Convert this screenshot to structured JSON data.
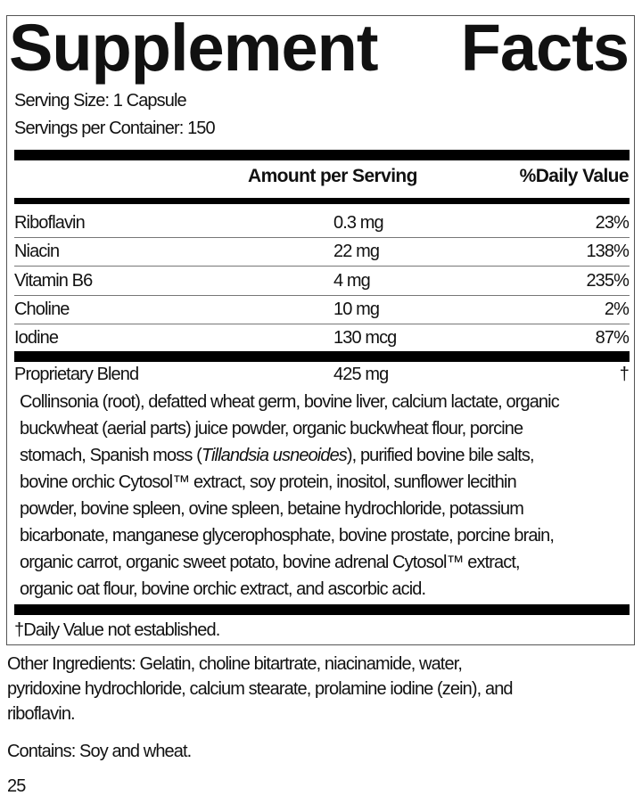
{
  "title": {
    "word1": "Supplement",
    "word2": "Facts"
  },
  "serving_size": "Serving Size: 1 Capsule",
  "servings_per_container": "Servings per Container: 150",
  "header": {
    "amount": "Amount per Serving",
    "dv": "%Daily Value"
  },
  "rows": [
    {
      "name": "Riboflavin",
      "amount": "0.3 mg",
      "dv": "23%"
    },
    {
      "name": "Niacin",
      "amount": "22 mg",
      "dv": "138%"
    },
    {
      "name": "Vitamin B6",
      "amount": "4 mg",
      "dv": "235%"
    },
    {
      "name": "Choline",
      "amount": "10 mg",
      "dv": "2%"
    },
    {
      "name": "Iodine",
      "amount": "130 mcg",
      "dv": "87%"
    }
  ],
  "blend": {
    "name": "Proprietary Blend",
    "amount": "425 mg",
    "dv": "†",
    "lines": [
      "Collinsonia (root), defatted wheat germ, bovine liver, calcium lactate, organic",
      "buckwheat (aerial parts) juice powder, organic buckwheat flour, porcine",
      "",
      "bovine orchic Cytosol™ extract, soy protein, inositol, sunflower lecithin",
      "powder, bovine spleen, ovine spleen, betaine hydrochloride, potassium",
      "bicarbonate, manganese glycerophosphate, bovine prostate, porcine brain,",
      "organic carrot, organic sweet potato, bovine adrenal Cytosol™ extract,",
      "organic oat flour, bovine orchic extract, and ascorbic acid."
    ],
    "line3": {
      "pre": "stomach, Spanish moss (",
      "italic": "Tillandsia usneoides",
      "post": "), purified bovine bile salts,"
    }
  },
  "footnote": "†Daily Value not established.",
  "other_ingredients": [
    "Other Ingredients: Gelatin, choline bitartrate, niacinamide, water,",
    "pyridoxine hydrochloride, calcium stearate, prolamine iodine (zein), and",
    "riboflavin."
  ],
  "contains": "Contains: Soy and wheat.",
  "page_number": "25"
}
